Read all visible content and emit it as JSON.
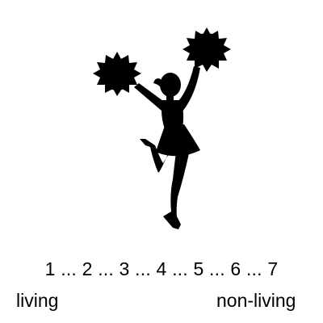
{
  "image": {
    "icon": "cheerleader-silhouette-icon",
    "fill_color": "#000000"
  },
  "scale": {
    "text": "1 ... 2 ... 3 ... 4 ... 5 ... 6 ... 7",
    "left_label": "living",
    "right_label": "non-living"
  }
}
